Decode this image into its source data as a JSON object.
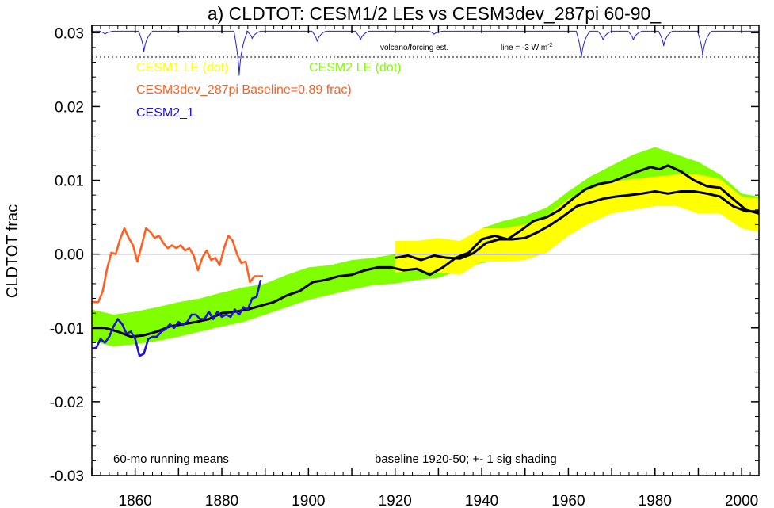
{
  "chart_data": {
    "type": "line",
    "title": "a) CLDTOT: CESM1/2 LEs vs CESM3dev_287pi 60-90_",
    "ylabel": "CLDTOT frac",
    "xlabel": "",
    "xlim": [
      1850,
      2004
    ],
    "ylim": [
      -0.03,
      0.031
    ],
    "x_ticks": [
      1860,
      1880,
      1900,
      1920,
      1940,
      1960,
      1980,
      2000
    ],
    "x_tick_labels": [
      "1860",
      "1880",
      "1900",
      "1920",
      "1940",
      "1960",
      "1980",
      "2000"
    ],
    "y_ticks": [
      -0.03,
      -0.02,
      -0.01,
      0.0,
      0.01,
      0.02,
      0.03
    ],
    "y_tick_labels": [
      "-0.03",
      "-0.02",
      "-0.01",
      "0.00",
      "0.01",
      "0.02",
      "0.03"
    ],
    "zero_line": 0.0,
    "legend": [
      {
        "label": "CESM1 LE (dot)",
        "color": "#ffff00"
      },
      {
        "label": "CESM2 LE (dot)",
        "color": "#80ff00"
      },
      {
        "label": "CESM3dev_287pi Baseline=0.89 frac)",
        "color": "#ff6020"
      },
      {
        "label": "CESM2_1",
        "color": "#2010d0"
      }
    ],
    "annotations": {
      "volcano_label": "volcano/forcing est.",
      "volcano_line": "line = -3 W m",
      "volcano_line_sup": "-2",
      "bottom_left": "60-mo running means",
      "bottom_right": "baseline 1920-50; +- 1 sig shading"
    },
    "colors": {
      "cesm1_band": "#ffff00",
      "cesm2_band": "#80ff00",
      "mean_line": "#000000",
      "cesm3dev": "#ff6020",
      "cesm2_1": "#2010d0",
      "volcano": "#2020d0"
    },
    "volcano_series": {
      "baseline": 0.0302,
      "dips": [
        {
          "year": 1853,
          "depth": 0.0004
        },
        {
          "year": 1862,
          "depth": 0.0028
        },
        {
          "year": 1884,
          "depth": 0.006
        },
        {
          "year": 1887,
          "depth": 0.001
        },
        {
          "year": 1902,
          "depth": 0.0014
        },
        {
          "year": 1912,
          "depth": 0.0012
        },
        {
          "year": 1929,
          "depth": 0.0004
        },
        {
          "year": 1963,
          "depth": 0.0036
        },
        {
          "year": 1968,
          "depth": 0.0012
        },
        {
          "year": 1975,
          "depth": 0.0012
        },
        {
          "year": 1982,
          "depth": 0.002
        },
        {
          "year": 1991,
          "depth": 0.0033
        }
      ]
    },
    "cesm2_band": {
      "x": [
        1850,
        1855,
        1860,
        1865,
        1870,
        1875,
        1880,
        1885,
        1890,
        1895,
        1900,
        1905,
        1910,
        1915,
        1920,
        1925,
        1930,
        1935,
        1940,
        1945,
        1950,
        1955,
        1960,
        1965,
        1970,
        1975,
        1980,
        1985,
        1990,
        1995,
        2000,
        2004
      ],
      "upper": [
        -0.0075,
        -0.0082,
        -0.0078,
        -0.0072,
        -0.0065,
        -0.006,
        -0.0052,
        -0.0045,
        -0.004,
        -0.0028,
        -0.0018,
        -0.0015,
        -0.0008,
        -0.0005,
        0.0,
        0.0008,
        0.001,
        0.0015,
        0.0035,
        0.0045,
        0.0052,
        0.0063,
        0.0085,
        0.0105,
        0.012,
        0.0135,
        0.0145,
        0.0135,
        0.0125,
        0.0108,
        0.0082,
        0.0078
      ],
      "lower": [
        -0.0118,
        -0.0125,
        -0.0122,
        -0.0118,
        -0.0112,
        -0.0105,
        -0.0098,
        -0.0092,
        -0.0082,
        -0.0072,
        -0.0062,
        -0.0055,
        -0.0048,
        -0.0042,
        -0.004,
        -0.0035,
        -0.0032,
        -0.0022,
        -0.0012,
        -0.0005,
        0.0008,
        0.0018,
        0.0035,
        0.0055,
        0.007,
        0.0078,
        0.0085,
        0.0078,
        0.0068,
        0.0055,
        0.0035,
        0.003
      ]
    },
    "cesm1_band": {
      "x": [
        1920,
        1925,
        1930,
        1935,
        1940,
        1945,
        1950,
        1955,
        1960,
        1965,
        1970,
        1975,
        1980,
        1985,
        1990,
        1995,
        2000,
        2004
      ],
      "upper": [
        0.0018,
        0.0018,
        0.0022,
        0.0018,
        0.0035,
        0.0035,
        0.004,
        0.0052,
        0.0075,
        0.0088,
        0.0098,
        0.0102,
        0.0105,
        0.0108,
        0.0108,
        0.0102,
        0.0078,
        0.0075
      ],
      "lower": [
        -0.0025,
        -0.0022,
        -0.0025,
        -0.0028,
        -0.001,
        -0.001,
        -0.0008,
        0.0002,
        0.0025,
        0.0042,
        0.0055,
        0.006,
        0.0065,
        0.0065,
        0.0055,
        0.0055,
        0.0035,
        0.003
      ]
    },
    "series": [
      {
        "name": "CESM2 LE (dot)",
        "color": "#000000",
        "x": [
          1850,
          1853,
          1856,
          1859,
          1862,
          1865,
          1868,
          1871,
          1874,
          1877,
          1880,
          1883,
          1886,
          1889,
          1892,
          1895,
          1898,
          1901,
          1904,
          1907,
          1910,
          1913,
          1916,
          1919,
          1922,
          1925,
          1928,
          1931,
          1934,
          1937,
          1940,
          1943,
          1946,
          1949,
          1952,
          1955,
          1958,
          1961,
          1964,
          1967,
          1970,
          1973,
          1976,
          1979,
          1981,
          1983,
          1986,
          1989,
          1992,
          1995,
          1998,
          2001,
          2004
        ],
        "y": [
          -0.01,
          -0.01,
          -0.0105,
          -0.0112,
          -0.011,
          -0.0105,
          -0.0098,
          -0.0095,
          -0.0092,
          -0.0088,
          -0.008,
          -0.0078,
          -0.0075,
          -0.007,
          -0.0065,
          -0.0056,
          -0.005,
          -0.0038,
          -0.0035,
          -0.003,
          -0.0028,
          -0.0022,
          -0.0018,
          -0.0018,
          -0.0022,
          -0.002,
          -0.0028,
          -0.0018,
          -0.0005,
          0.0002,
          0.002,
          0.0025,
          0.002,
          0.0032,
          0.0045,
          0.005,
          0.006,
          0.0075,
          0.0088,
          0.0095,
          0.0098,
          0.0105,
          0.0112,
          0.0118,
          0.0115,
          0.012,
          0.0112,
          0.01,
          0.0092,
          0.009,
          0.0075,
          0.006,
          0.0055
        ]
      },
      {
        "name": "CESM1 LE (dot)",
        "color": "#000000",
        "x": [
          1920,
          1923,
          1926,
          1929,
          1932,
          1935,
          1938,
          1941,
          1944,
          1947,
          1950,
          1953,
          1956,
          1959,
          1962,
          1965,
          1968,
          1971,
          1974,
          1977,
          1980,
          1983,
          1986,
          1989,
          1992,
          1995,
          1998,
          2001,
          2004
        ],
        "y": [
          -0.0005,
          -0.0002,
          -0.0008,
          -0.0002,
          -0.0005,
          -0.0006,
          0.0001,
          0.0015,
          0.002,
          0.002,
          0.0022,
          0.003,
          0.004,
          0.0052,
          0.0065,
          0.007,
          0.0075,
          0.0078,
          0.008,
          0.0082,
          0.0085,
          0.0082,
          0.0085,
          0.0085,
          0.0082,
          0.0078,
          0.0065,
          0.0058,
          0.0058
        ]
      },
      {
        "name": "CESM3dev_287pi Baseline=0.89 frac)",
        "color": "#ff6020",
        "x": [
          1850,
          1851.5,
          1852.5,
          1853.5,
          1854.5,
          1855.5,
          1856.5,
          1857.5,
          1858.5,
          1859.5,
          1860.5,
          1861.5,
          1862.5,
          1863.5,
          1864.5,
          1865.5,
          1866.5,
          1867.5,
          1868.5,
          1869.5,
          1870.5,
          1871.5,
          1872.5,
          1873.5,
          1874.5,
          1875.5,
          1876.5,
          1877.5,
          1878.5,
          1879.5,
          1880.5,
          1881.5,
          1882.5,
          1883.5,
          1884.5,
          1885.5,
          1886.5,
          1887.5,
          1888.5,
          1889.5
        ],
        "y": [
          -0.0065,
          -0.0065,
          -0.005,
          -0.002,
          0.0002,
          0.0,
          0.002,
          0.0035,
          0.0022,
          0.0012,
          -0.001,
          0.0012,
          0.0035,
          0.003,
          0.0022,
          0.0025,
          0.0015,
          0.0008,
          0.0012,
          0.0008,
          0.0012,
          0.0005,
          0.0008,
          -0.0002,
          -0.0022,
          -0.0005,
          0.0005,
          -0.0008,
          -0.0005,
          -0.0015,
          0.0008,
          0.0025,
          0.0018,
          0.0,
          -0.0012,
          -0.001,
          -0.0038,
          -0.003,
          -0.003,
          -0.003
        ]
      },
      {
        "name": "CESM2_1",
        "color": "#2010d0",
        "x": [
          1850,
          1851,
          1852,
          1853,
          1854,
          1855,
          1856,
          1857,
          1858,
          1859,
          1860,
          1861,
          1862,
          1863,
          1864,
          1865,
          1866,
          1867,
          1868,
          1869,
          1870,
          1871,
          1872,
          1873,
          1874,
          1875,
          1876,
          1877,
          1878,
          1879,
          1880,
          1881,
          1882,
          1883,
          1884,
          1885,
          1886,
          1887,
          1888,
          1889
        ],
        "y": [
          -0.0128,
          -0.0127,
          -0.0115,
          -0.012,
          -0.0112,
          -0.0098,
          -0.0088,
          -0.0095,
          -0.0108,
          -0.0105,
          -0.0115,
          -0.0138,
          -0.0135,
          -0.0115,
          -0.0112,
          -0.0112,
          -0.0105,
          -0.0102,
          -0.0095,
          -0.01,
          -0.0092,
          -0.0096,
          -0.0092,
          -0.0082,
          -0.0082,
          -0.0088,
          -0.0088,
          -0.0078,
          -0.0088,
          -0.0078,
          -0.0085,
          -0.0082,
          -0.0085,
          -0.0075,
          -0.0082,
          -0.0072,
          -0.0075,
          -0.006,
          -0.0058,
          -0.0035
        ]
      }
    ]
  }
}
